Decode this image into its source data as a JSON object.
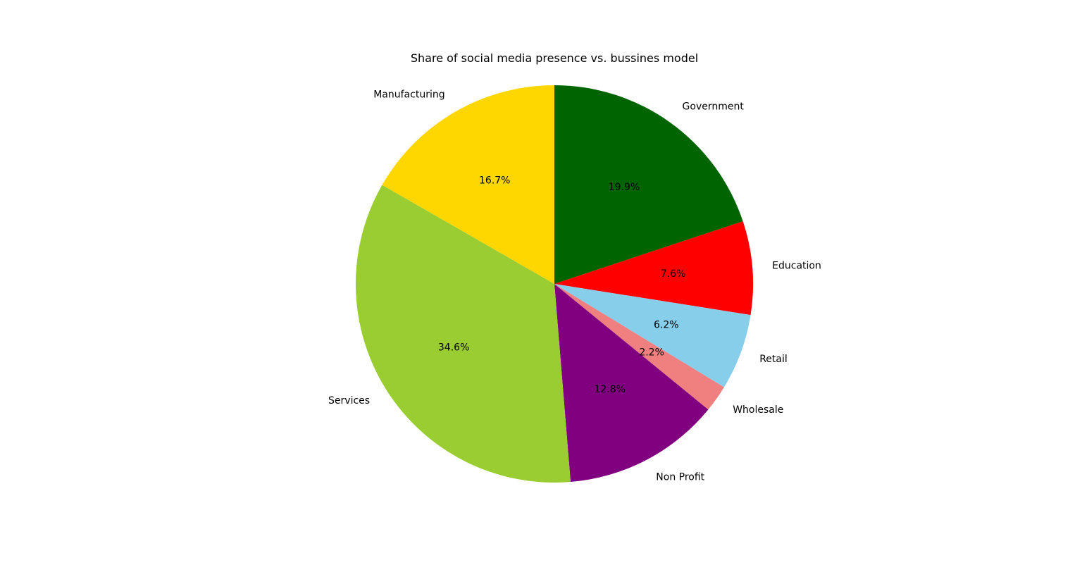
{
  "chart_data": {
    "type": "pie",
    "title": "Share of social media presence vs. bussines model",
    "start_angle_deg": 90,
    "direction": "clockwise",
    "slices": [
      {
        "label": "Government",
        "value": 19.9,
        "pct_text": "19.9%",
        "color": "#006400"
      },
      {
        "label": "Education",
        "value": 7.6,
        "pct_text": "7.6%",
        "color": "#ff0000"
      },
      {
        "label": "Retail",
        "value": 6.2,
        "pct_text": "6.2%",
        "color": "#87ceeb"
      },
      {
        "label": "Wholesale",
        "value": 2.2,
        "pct_text": "2.2%",
        "color": "#f08080"
      },
      {
        "label": "Non Profit",
        "value": 12.8,
        "pct_text": "12.8%",
        "color": "#800080"
      },
      {
        "label": "Services",
        "value": 34.6,
        "pct_text": "34.6%",
        "color": "#9acd32"
      },
      {
        "label": "Manufacturing",
        "value": 16.7,
        "pct_text": "16.7%",
        "color": "#ffd700"
      }
    ]
  }
}
